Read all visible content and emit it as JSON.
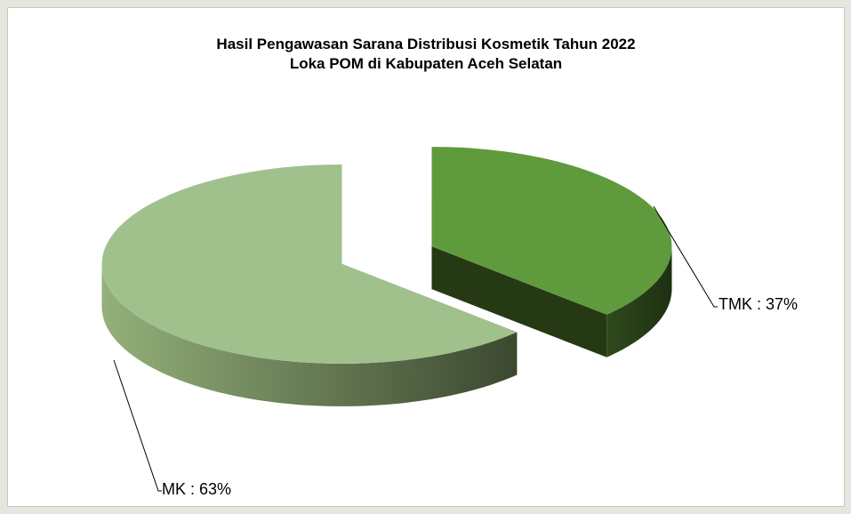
{
  "chart_data": {
    "type": "pie",
    "title": "Hasil Pengawasan Sarana Distribusi Kosmetik Tahun 2022",
    "subtitle": "Loka POM di Kabupaten Aceh Selatan",
    "categories": [
      "TMK",
      "MK"
    ],
    "values": [
      37,
      63
    ],
    "value_labels": [
      "TMK : 37%",
      "MK : 63%"
    ],
    "colors": [
      "#5f9a3c",
      "#a0c18c"
    ]
  }
}
